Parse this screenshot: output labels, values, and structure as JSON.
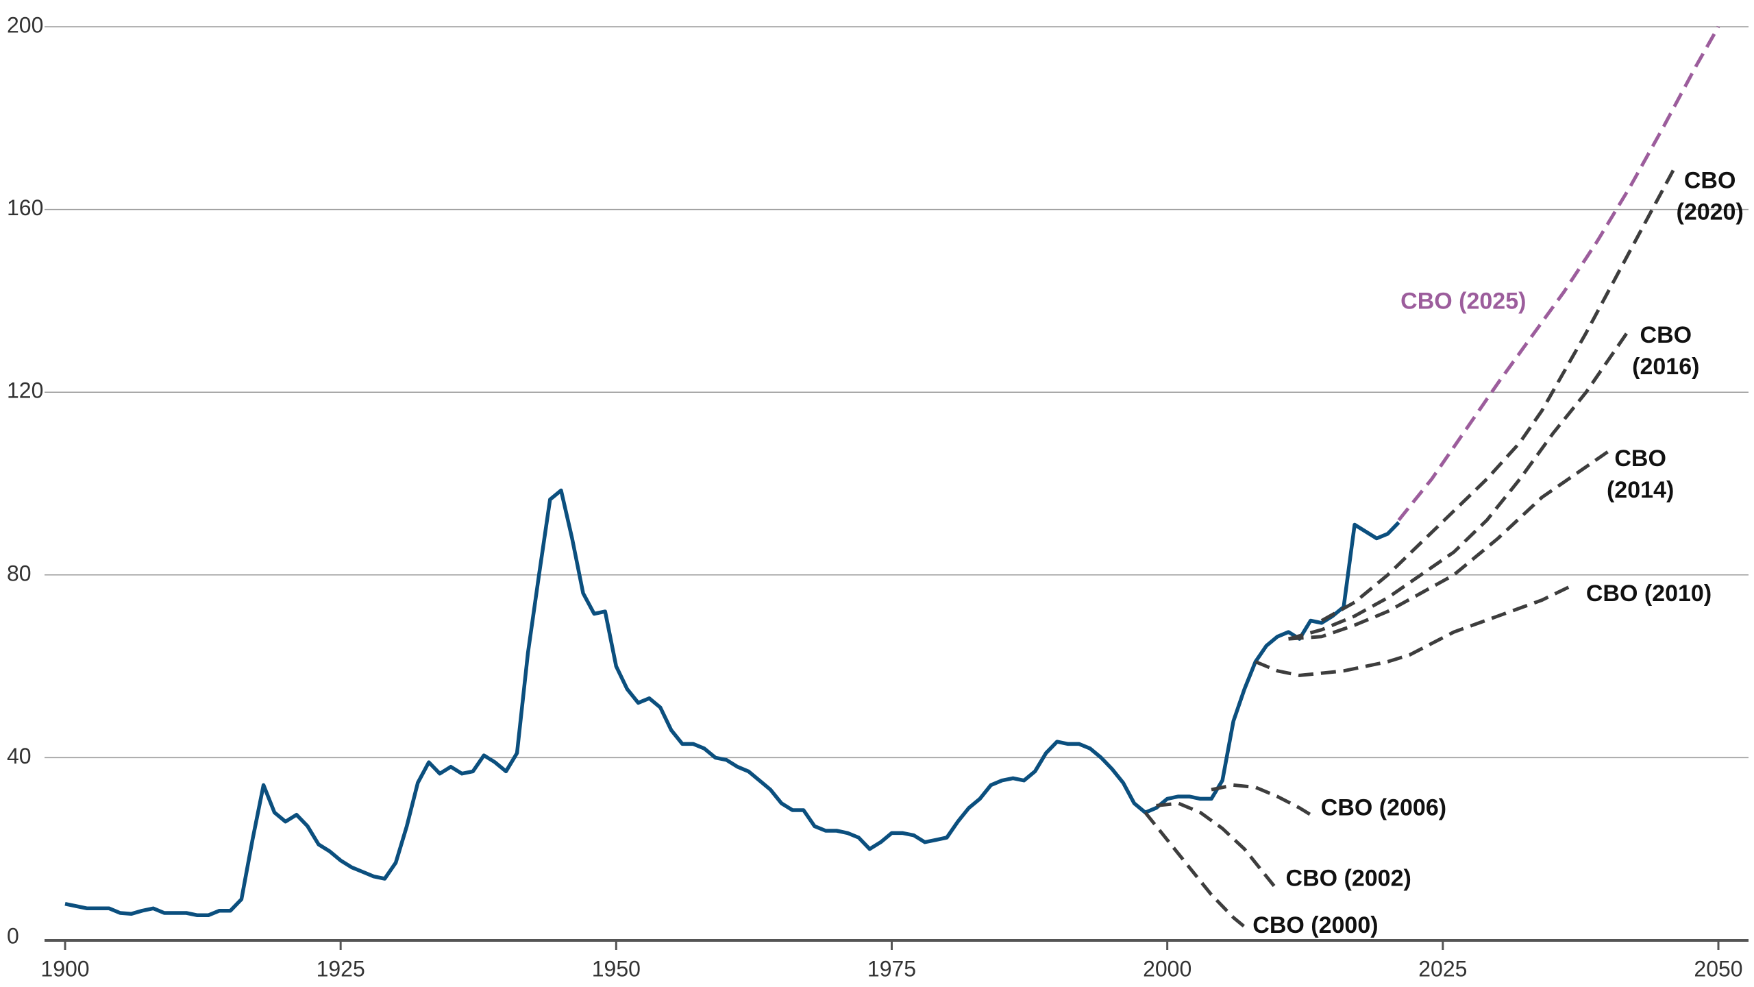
{
  "chart_data": {
    "type": "line",
    "xlim": [
      1900,
      2050
    ],
    "xticks": [
      1900,
      1925,
      1950,
      1975,
      2000,
      2025,
      2050
    ],
    "ylim": [
      0,
      200
    ],
    "yticks": [
      0,
      40,
      80,
      120,
      160,
      200
    ],
    "grid": true,
    "series": [
      {
        "color": "#0b4f7e",
        "dashed": false,
        "x": [
          1900,
          1901,
          1902,
          1903,
          1904,
          1905,
          1906,
          1907,
          1908,
          1909,
          1910,
          1911,
          1912,
          1913,
          1914,
          1915,
          1916,
          1917,
          1918,
          1919,
          1920,
          1921,
          1922,
          1923,
          1924,
          1925,
          1926,
          1927,
          1928,
          1929,
          1930,
          1931,
          1932,
          1933,
          1934,
          1935,
          1936,
          1937,
          1938,
          1939,
          1940,
          1941,
          1942,
          1943,
          1944,
          1945,
          1946,
          1947,
          1948,
          1949,
          1950,
          1951,
          1952,
          1953,
          1954,
          1955,
          1956,
          1957,
          1958,
          1959,
          1960,
          1961,
          1962,
          1963,
          1964,
          1965,
          1966,
          1967,
          1968,
          1969,
          1970,
          1971,
          1972,
          1973,
          1974,
          1975,
          1976,
          1977,
          1978,
          1979,
          1980,
          1981,
          1982,
          1983,
          1984,
          1985,
          1986,
          1987,
          1988,
          1989,
          1990,
          1991,
          1992,
          1993,
          1994,
          1995,
          1996,
          1997,
          1998,
          1999,
          2000,
          2001,
          2002,
          2003,
          2004,
          2005,
          2006,
          2007,
          2008,
          2009,
          2010,
          2011,
          2012,
          2013,
          2014,
          2015,
          2016,
          2017,
          2018,
          2019,
          2020,
          2021
        ],
        "values": [
          8,
          7.5,
          7,
          7,
          7,
          6,
          5.8,
          6.5,
          7,
          6,
          6,
          6,
          5.5,
          5.5,
          6.5,
          6.5,
          9,
          22,
          34,
          28,
          26,
          27.5,
          25,
          21,
          19.5,
          17.5,
          16,
          15,
          14,
          13.5,
          17,
          25,
          34.5,
          39,
          36.5,
          38,
          36.5,
          37,
          40.5,
          39,
          37,
          41,
          63,
          80,
          96.5,
          98.5,
          88,
          76,
          71.5,
          72,
          60,
          55,
          52,
          53,
          51,
          46,
          43,
          43,
          42,
          40,
          39.5,
          38,
          37,
          35,
          33,
          30,
          28.5,
          28.5,
          25,
          24,
          24,
          23.5,
          22.5,
          20,
          21.5,
          23.5,
          23.5,
          23,
          21.5,
          22,
          22.5,
          26,
          29,
          31,
          34,
          35,
          35.5,
          35,
          37,
          41,
          43.5,
          43,
          43,
          42,
          40,
          37.5,
          34.5,
          30,
          28,
          29,
          31,
          31.5,
          31.5,
          31,
          31,
          35,
          48,
          55,
          61,
          64.5,
          66.5,
          67.5,
          66,
          70,
          69.5,
          71,
          73,
          91,
          89.5,
          88,
          89,
          91.5
        ]
      },
      {
        "name": "CBO (2000)",
        "color": "#3d3d3d",
        "dashed": true,
        "x": [
          1998,
          2000,
          2002,
          2004,
          2006,
          2007
        ],
        "values": [
          28,
          22,
          16,
          10,
          5,
          3
        ]
      },
      {
        "name": "CBO (2002)",
        "color": "#3d3d3d",
        "dashed": true,
        "x": [
          1999,
          2001,
          2003,
          2005,
          2007,
          2009,
          2010
        ],
        "values": [
          29.5,
          30,
          28,
          24.5,
          20,
          14,
          11
        ]
      },
      {
        "name": "CBO (2006)",
        "color": "#3d3d3d",
        "dashed": true,
        "x": [
          2004,
          2006,
          2008,
          2010,
          2012,
          2013
        ],
        "values": [
          33,
          34,
          33.5,
          31.5,
          29,
          27.5
        ]
      },
      {
        "name": "CBO (2010)",
        "color": "#3d3d3d",
        "dashed": true,
        "x": [
          2008,
          2010,
          2012,
          2016,
          2020,
          2022,
          2026,
          2030,
          2034,
          2037
        ],
        "values": [
          61,
          59,
          58,
          59,
          61,
          62.5,
          67.5,
          71,
          74.5,
          78
        ]
      },
      {
        "name": "CBO (2014)",
        "color": "#3d3d3d",
        "dashed": true,
        "x": [
          2011,
          2014,
          2017,
          2020,
          2023,
          2026,
          2030,
          2034,
          2037,
          2040
        ],
        "values": [
          66,
          66.5,
          69,
          72,
          76,
          80,
          88,
          97,
          102,
          107
        ]
      },
      {
        "name": "CBO (2016)",
        "color": "#3d3d3d",
        "dashed": true,
        "x": [
          2011,
          2014,
          2017,
          2020,
          2023,
          2026,
          2029,
          2032,
          2035,
          2038,
          2042
        ],
        "values": [
          66,
          68,
          71,
          75,
          80,
          85,
          92,
          101,
          111,
          120,
          134
        ]
      },
      {
        "name": "CBO (2020)",
        "color": "#3d3d3d",
        "dashed": true,
        "x": [
          2014,
          2017,
          2020,
          2023,
          2026,
          2029,
          2032,
          2034,
          2038,
          2042,
          2046
        ],
        "values": [
          70,
          74,
          80,
          87,
          94,
          101,
          109,
          116,
          133,
          151,
          169
        ]
      },
      {
        "name": "CBO (2025)",
        "color": "#9c5d9c",
        "dashed": true,
        "x": [
          2021,
          2024,
          2027,
          2030,
          2033,
          2036,
          2039,
          2042,
          2045,
          2048,
          2050
        ],
        "values": [
          92,
          101,
          111.5,
          122,
          132,
          142,
          153,
          165,
          178,
          191.5,
          200
        ]
      }
    ]
  }
}
